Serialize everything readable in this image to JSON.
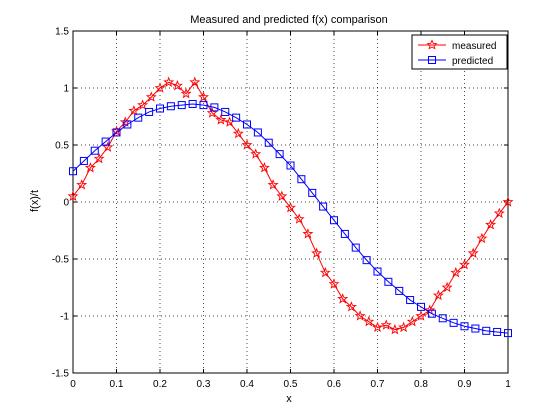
{
  "chart_data": {
    "type": "line",
    "title": "Measured and predicted f(x) comparison",
    "xlabel": "x",
    "ylabel": "f(x)/t",
    "xlim": [
      0,
      1
    ],
    "ylim": [
      -1.5,
      1.5
    ],
    "xticks": [
      0,
      0.1,
      0.2,
      0.3,
      0.4,
      0.5,
      0.6,
      0.7,
      0.8,
      0.9,
      1
    ],
    "xtick_labels": [
      "0",
      "0.1",
      "0.2",
      "0.3",
      "0.4",
      "0.5",
      "0.6",
      "0.7",
      "0.8",
      "0.9",
      "1"
    ],
    "yticks": [
      -1.5,
      -1,
      -0.5,
      0,
      0.5,
      1,
      1.5
    ],
    "ytick_labels": [
      "-1.5",
      "-1",
      "-0.5",
      "0",
      "0.5",
      "1",
      "1.5"
    ],
    "grid": true,
    "legend_position": "top-right",
    "series": [
      {
        "name": "measured",
        "color": "#ff0000",
        "marker": "star",
        "x": [
          0,
          0.02,
          0.04,
          0.06,
          0.08,
          0.1,
          0.12,
          0.14,
          0.16,
          0.18,
          0.2,
          0.22,
          0.24,
          0.26,
          0.28,
          0.3,
          0.32,
          0.34,
          0.36,
          0.38,
          0.4,
          0.42,
          0.44,
          0.46,
          0.48,
          0.5,
          0.52,
          0.54,
          0.56,
          0.58,
          0.6,
          0.62,
          0.64,
          0.66,
          0.68,
          0.7,
          0.72,
          0.74,
          0.76,
          0.78,
          0.8,
          0.82,
          0.84,
          0.86,
          0.88,
          0.9,
          0.92,
          0.94,
          0.96,
          0.98,
          1.0
        ],
        "y": [
          0.05,
          0.15,
          0.3,
          0.38,
          0.48,
          0.62,
          0.7,
          0.8,
          0.85,
          0.92,
          1.0,
          1.05,
          1.02,
          0.95,
          1.05,
          0.92,
          0.78,
          0.72,
          0.7,
          0.6,
          0.5,
          0.42,
          0.3,
          0.15,
          0.05,
          -0.05,
          -0.15,
          -0.28,
          -0.45,
          -0.62,
          -0.72,
          -0.85,
          -0.92,
          -1.0,
          -1.05,
          -1.1,
          -1.08,
          -1.12,
          -1.1,
          -1.05,
          -1.0,
          -0.95,
          -0.82,
          -0.75,
          -0.62,
          -0.55,
          -0.45,
          -0.32,
          -0.2,
          -0.1,
          0.0
        ]
      },
      {
        "name": "predicted",
        "color": "#0000ff",
        "marker": "square",
        "x": [
          0,
          0.025,
          0.05,
          0.075,
          0.1,
          0.125,
          0.15,
          0.175,
          0.2,
          0.225,
          0.25,
          0.275,
          0.3,
          0.325,
          0.35,
          0.375,
          0.4,
          0.425,
          0.45,
          0.475,
          0.5,
          0.525,
          0.55,
          0.575,
          0.6,
          0.625,
          0.65,
          0.675,
          0.7,
          0.725,
          0.75,
          0.775,
          0.8,
          0.825,
          0.85,
          0.875,
          0.9,
          0.925,
          0.95,
          0.975,
          1.0
        ],
        "y": [
          0.27,
          0.36,
          0.45,
          0.53,
          0.61,
          0.68,
          0.74,
          0.79,
          0.82,
          0.84,
          0.85,
          0.86,
          0.85,
          0.83,
          0.79,
          0.74,
          0.68,
          0.61,
          0.52,
          0.42,
          0.32,
          0.2,
          0.08,
          -0.04,
          -0.16,
          -0.28,
          -0.4,
          -0.51,
          -0.61,
          -0.7,
          -0.78,
          -0.86,
          -0.92,
          -0.98,
          -1.02,
          -1.06,
          -1.09,
          -1.11,
          -1.13,
          -1.14,
          -1.15
        ]
      }
    ]
  }
}
